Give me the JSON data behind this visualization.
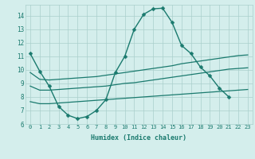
{
  "xlabel": "Humidex (Indice chaleur)",
  "xlim": [
    -0.5,
    23.5
  ],
  "ylim": [
    6,
    14.8
  ],
  "yticks": [
    6,
    7,
    8,
    9,
    10,
    11,
    12,
    13,
    14
  ],
  "xticks": [
    0,
    1,
    2,
    3,
    4,
    5,
    6,
    7,
    8,
    9,
    10,
    11,
    12,
    13,
    14,
    15,
    16,
    17,
    18,
    19,
    20,
    21,
    22,
    23
  ],
  "background_color": "#d4eeec",
  "grid_color": "#aacfcc",
  "line_color": "#1a7a6e",
  "series": [
    {
      "x": [
        0,
        1,
        2,
        3,
        4,
        5,
        6,
        7,
        8,
        9,
        10,
        11,
        12,
        13,
        14,
        15,
        16,
        17,
        18,
        19,
        20,
        21
      ],
      "y": [
        11.2,
        9.9,
        8.8,
        7.3,
        6.65,
        6.4,
        6.55,
        7.0,
        7.8,
        9.8,
        11.0,
        13.0,
        14.1,
        14.5,
        14.55,
        13.5,
        11.8,
        11.2,
        10.2,
        9.55,
        8.65,
        8.0
      ],
      "marker": "D",
      "markersize": 2.5,
      "linewidth": 1.0
    },
    {
      "x": [
        0,
        1,
        2,
        3,
        4,
        5,
        6,
        7,
        8,
        9,
        10,
        11,
        12,
        13,
        14,
        15,
        16,
        17,
        18,
        19,
        20,
        21,
        22,
        23
      ],
      "y": [
        9.8,
        9.3,
        9.25,
        9.3,
        9.35,
        9.4,
        9.45,
        9.5,
        9.6,
        9.7,
        9.8,
        9.9,
        10.0,
        10.1,
        10.2,
        10.3,
        10.45,
        10.55,
        10.65,
        10.75,
        10.85,
        10.95,
        11.05,
        11.1
      ],
      "marker": null,
      "markersize": 0,
      "linewidth": 0.9
    },
    {
      "x": [
        0,
        1,
        2,
        3,
        4,
        5,
        6,
        7,
        8,
        9,
        10,
        11,
        12,
        13,
        14,
        15,
        16,
        17,
        18,
        19,
        20,
        21,
        22,
        23
      ],
      "y": [
        8.8,
        8.5,
        8.5,
        8.55,
        8.6,
        8.65,
        8.7,
        8.75,
        8.8,
        8.9,
        9.0,
        9.05,
        9.15,
        9.25,
        9.35,
        9.45,
        9.55,
        9.65,
        9.75,
        9.85,
        9.95,
        10.05,
        10.1,
        10.15
      ],
      "marker": null,
      "markersize": 0,
      "linewidth": 0.9
    },
    {
      "x": [
        0,
        1,
        2,
        3,
        4,
        5,
        6,
        7,
        8,
        9,
        10,
        11,
        12,
        13,
        14,
        15,
        16,
        17,
        18,
        19,
        20,
        21,
        22,
        23
      ],
      "y": [
        7.65,
        7.5,
        7.5,
        7.55,
        7.6,
        7.65,
        7.7,
        7.75,
        7.8,
        7.85,
        7.9,
        7.95,
        8.0,
        8.05,
        8.1,
        8.15,
        8.2,
        8.25,
        8.3,
        8.35,
        8.4,
        8.45,
        8.5,
        8.55
      ],
      "marker": null,
      "markersize": 0,
      "linewidth": 0.9
    }
  ]
}
